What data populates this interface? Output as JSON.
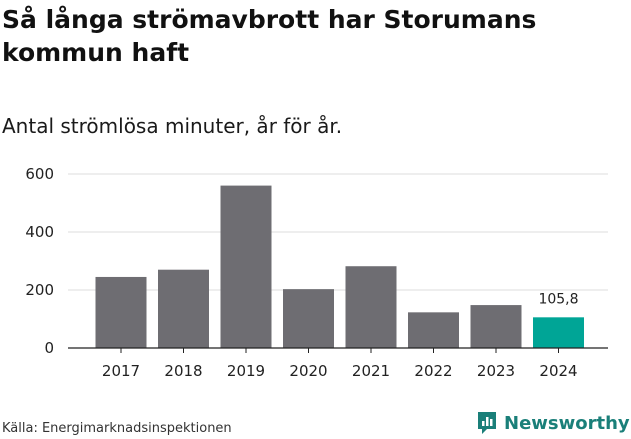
{
  "title": "Så långa strömavbrott har Storumans kommun haft",
  "subtitle": "Antal strömlösa minuter, år för år.",
  "source": "Källa: Energimarknadsinspektionen",
  "brand": {
    "name": "Newsworthy",
    "icon": "newsworthy-logo-icon",
    "color": "#1a7f79"
  },
  "colors": {
    "bar": "#6e6d72",
    "highlight": "#00a596",
    "grid": "#dcdcdc",
    "axis": "#222222"
  },
  "chart_data": {
    "type": "bar",
    "title": "Så långa strömavbrott har Storumans kommun haft",
    "subtitle": "Antal strömlösa minuter, år för år.",
    "xlabel": "",
    "ylabel": "",
    "categories": [
      "2017",
      "2018",
      "2019",
      "2020",
      "2021",
      "2022",
      "2023",
      "2024"
    ],
    "values": [
      245,
      270,
      560,
      203,
      282,
      123,
      148,
      105.8
    ],
    "highlight_index": 7,
    "data_labels": {
      "7": "105,8"
    },
    "ylim": [
      0,
      600
    ],
    "yticks": [
      0,
      200,
      400,
      600
    ],
    "grid": true
  }
}
